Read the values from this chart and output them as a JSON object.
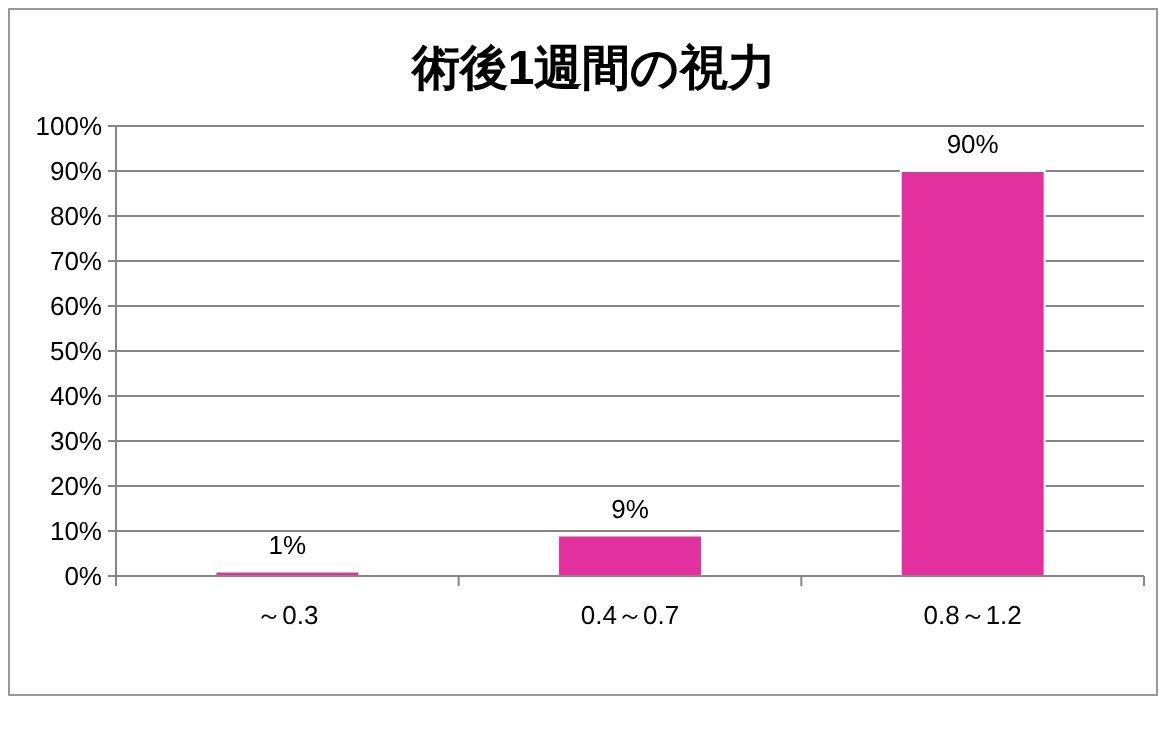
{
  "chart_data": {
    "type": "bar",
    "title": "術後1週間の視力",
    "categories": [
      "～0.3",
      "0.4～0.7",
      "0.8～1.2"
    ],
    "values": [
      1,
      9,
      90
    ],
    "value_labels": [
      "1%",
      "9%",
      "90%"
    ],
    "color": "#e2309f",
    "ylim": [
      0,
      100
    ],
    "yticks": [
      {
        "value": 0,
        "label": "0%"
      },
      {
        "value": 10,
        "label": "10%"
      },
      {
        "value": 20,
        "label": "20%"
      },
      {
        "value": 30,
        "label": "30%"
      },
      {
        "value": 40,
        "label": "40%"
      },
      {
        "value": 50,
        "label": "50%"
      },
      {
        "value": 60,
        "label": "60%"
      },
      {
        "value": 70,
        "label": "70%"
      },
      {
        "value": 80,
        "label": "80%"
      },
      {
        "value": 90,
        "label": "90%"
      },
      {
        "value": 100,
        "label": "100%"
      }
    ],
    "grid": "y"
  }
}
